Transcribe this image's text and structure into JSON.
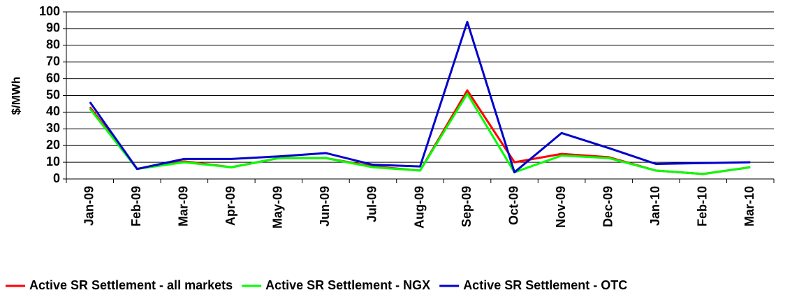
{
  "chart_data": {
    "type": "line",
    "y_label": "$/MWh",
    "categories": [
      "Jan-09",
      "Feb-09",
      "Mar-09",
      "Apr-09",
      "May-09",
      "Jun-09",
      "Jul-09",
      "Aug-09",
      "Sep-09",
      "Oct-09",
      "Nov-09",
      "Dec-09",
      "Jan-10",
      "Feb-10",
      "Mar-10"
    ],
    "series": [
      {
        "name": "Active SR Settlement - all markets",
        "color": "#ff0000",
        "values": [
          43,
          6,
          10.5,
          7,
          12.5,
          12.5,
          7.5,
          5,
          53,
          10,
          15,
          13,
          5,
          3,
          7
        ]
      },
      {
        "name": "Active SR Settlement - NGX",
        "color": "#00ff00",
        "values": [
          42,
          6,
          10,
          7,
          12.5,
          12.5,
          7,
          5,
          51,
          4,
          14,
          12.5,
          5,
          3,
          7
        ]
      },
      {
        "name": "Active SR Settlement - OTC",
        "color": "#0000cc",
        "values": [
          46,
          6,
          12,
          12,
          13.5,
          15.5,
          8.5,
          7.5,
          94,
          4,
          27.5,
          18.5,
          9,
          9.5,
          10
        ]
      }
    ],
    "ylim": [
      0,
      100
    ],
    "yticks": [
      0,
      10,
      20,
      30,
      40,
      50,
      60,
      70,
      80,
      90,
      100
    ],
    "grid": true,
    "legend": "bottom"
  }
}
